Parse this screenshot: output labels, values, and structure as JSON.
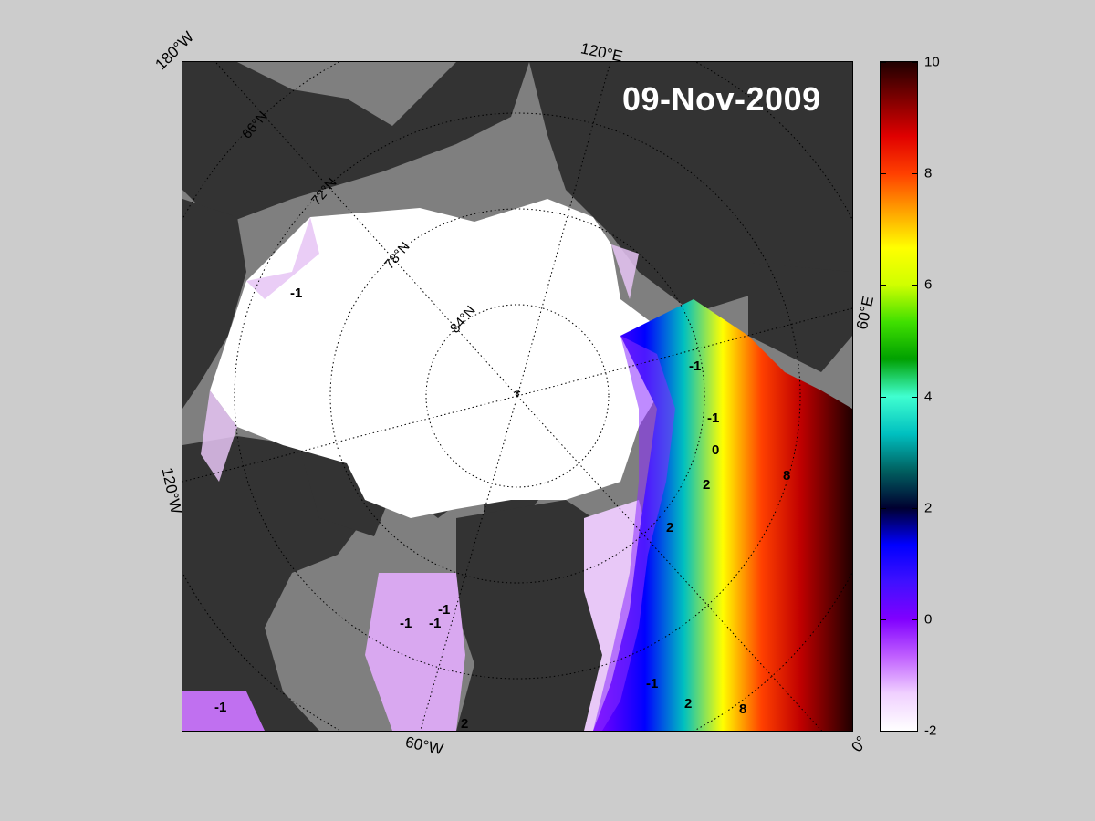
{
  "date_label": "09-Nov-2009",
  "map_edge_labels": {
    "top_left": "180°W",
    "top": "120°E",
    "right": "60°E",
    "left": "120°W",
    "bottom": "60°W",
    "bottom_right": "0°"
  },
  "latitude_labels": [
    "66°N",
    "72°N",
    "78°N",
    "84°N"
  ],
  "contour_labels": [
    "-1",
    "-1",
    "-1",
    "-1",
    "-1",
    "-1",
    "-1",
    "0",
    "2",
    "2",
    "2",
    "2",
    "8",
    "8",
    "-1"
  ],
  "colorbar": {
    "min": -2,
    "max": 10,
    "ticks": [
      10,
      8,
      6,
      4,
      2,
      0,
      -2
    ],
    "colors": [
      "#ffffff",
      "#f0d0ff",
      "#c060ff",
      "#8000ff",
      "#4010ff",
      "#0000ff",
      "#000030",
      "#006060",
      "#00c0c0",
      "#40ffd0",
      "#00a000",
      "#40e000",
      "#d0ff00",
      "#ffff00",
      "#ffa000",
      "#ff4000",
      "#e00000",
      "#800000",
      "#200000"
    ]
  },
  "colors": {
    "background": "#cccccc",
    "land": "#333333",
    "shelf": "#7f7f7f",
    "ice": "#ffffff"
  }
}
